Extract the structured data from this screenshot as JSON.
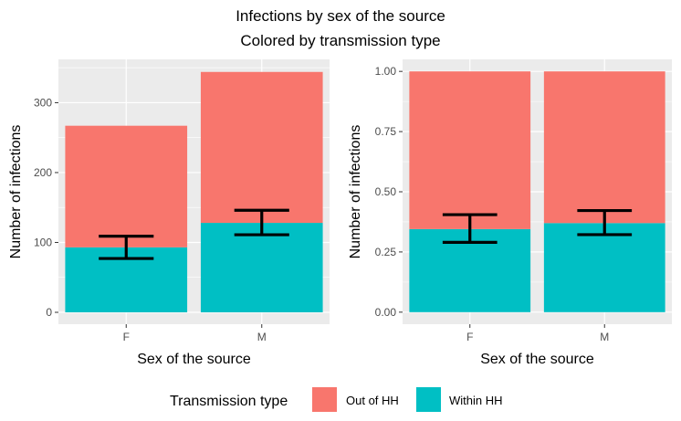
{
  "figure": {
    "title": "Infections by sex of the source",
    "subtitle": "Colored by transmission type"
  },
  "legend": {
    "title": "Transmission type",
    "entries": [
      {
        "label": "Out of HH",
        "color": "#F8766D"
      },
      {
        "label": "Within HH",
        "color": "#00BFC4"
      }
    ],
    "position": "bottom"
  },
  "chart_data": [
    {
      "type": "bar",
      "stacked": true,
      "xlabel": "Sex of the source",
      "ylabel": "Number of infections",
      "categories": [
        "F",
        "M"
      ],
      "series": [
        {
          "name": "Within HH",
          "color": "#00BFC4",
          "values": [
            93,
            128
          ]
        },
        {
          "name": "Out of HH",
          "color": "#F8766D",
          "values": [
            174,
            216
          ]
        }
      ],
      "error_bars": [
        {
          "category": "F",
          "low": 77,
          "high": 109
        },
        {
          "category": "M",
          "low": 111,
          "high": 146
        }
      ],
      "ylim": [
        -17,
        362
      ],
      "yticks": [
        0,
        100,
        200,
        300
      ],
      "ytick_labels": [
        "0",
        "100",
        "200",
        "300"
      ],
      "grid": true
    },
    {
      "type": "bar",
      "stacked": true,
      "normalized": true,
      "xlabel": "Sex of the source",
      "ylabel": "Number of infections",
      "categories": [
        "F",
        "M"
      ],
      "series": [
        {
          "name": "Within HH",
          "color": "#00BFC4",
          "values": [
            0.345,
            0.37
          ]
        },
        {
          "name": "Out of HH",
          "color": "#F8766D",
          "values": [
            0.655,
            0.63
          ]
        }
      ],
      "error_bars": [
        {
          "category": "F",
          "low": 0.29,
          "high": 0.405
        },
        {
          "category": "M",
          "low": 0.322,
          "high": 0.422
        }
      ],
      "ylim": [
        -0.05,
        1.05
      ],
      "yticks": [
        0,
        0.25,
        0.5,
        0.75,
        1.0
      ],
      "ytick_labels": [
        "0.00",
        "0.25",
        "0.50",
        "0.75",
        "1.00"
      ],
      "grid": true
    }
  ]
}
